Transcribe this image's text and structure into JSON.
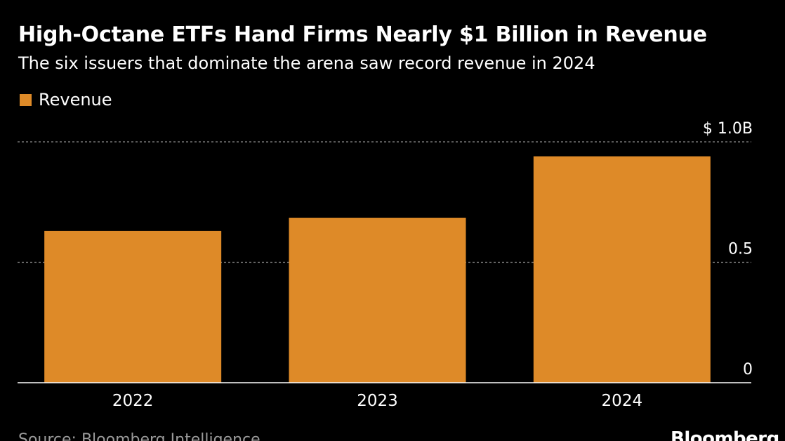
{
  "chart_data": {
    "type": "bar",
    "title": "High-Octane ETFs Hand Firms Nearly $1 Billion in Revenue",
    "subtitle": "The six issuers that dominate the arena saw record revenue in 2024",
    "categories": [
      "2022",
      "2023",
      "2024"
    ],
    "series": [
      {
        "name": "Revenue",
        "values": [
          0.63,
          0.685,
          0.94
        ]
      }
    ],
    "ylim": [
      0,
      1.0
    ],
    "yticks": [
      {
        "value": 0,
        "label": "0"
      },
      {
        "value": 0.5,
        "label": "0.5"
      },
      {
        "value": 1.0,
        "label": "$ 1.0B"
      }
    ],
    "grid": true,
    "legend_position": "top-left",
    "colors": {
      "bar": "#de8a28",
      "background": "#000000",
      "grid": "#8a8a8a",
      "text": "#ffffff"
    }
  },
  "footer": {
    "source": "Source: Bloomberg Intelligence",
    "logo": "Bloomberg"
  }
}
